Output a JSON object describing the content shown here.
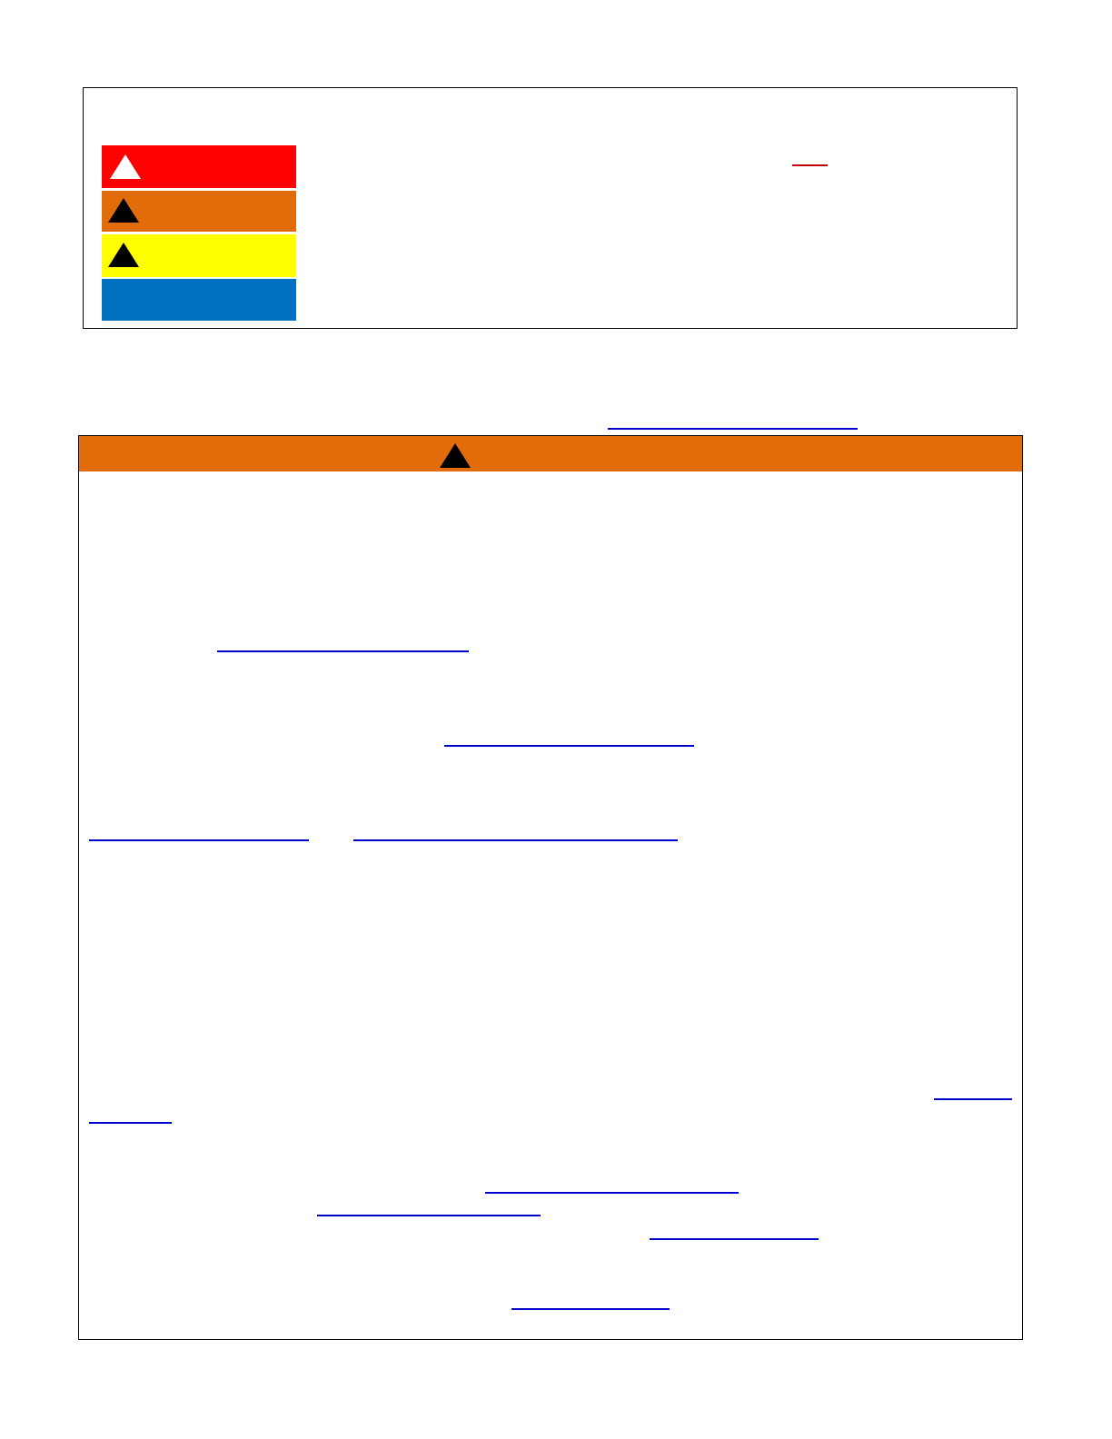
{
  "legend_box": {
    "bands": [
      {
        "color": "#FF0000",
        "icon": "warning-triangle-icon",
        "icon_color": "#FFFFFF"
      },
      {
        "color": "#E36C0A",
        "icon": "warning-triangle-icon",
        "icon_color": "#000000"
      },
      {
        "color": "#FFFF00",
        "icon": "warning-triangle-icon",
        "icon_color": "#000000"
      },
      {
        "color": "#0070C0"
      }
    ],
    "underline_color": "#C00000"
  },
  "warning_box": {
    "header_color": "#E36C0A",
    "header_icon": "warning-triangle-icon",
    "link_color": "#0000CC"
  }
}
